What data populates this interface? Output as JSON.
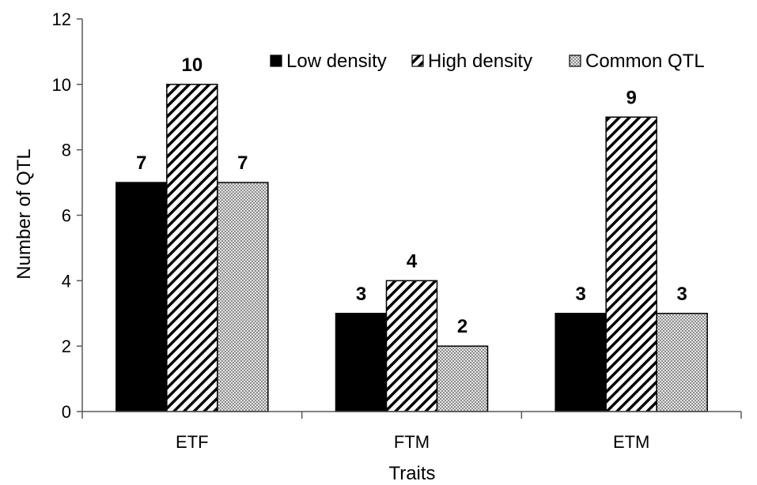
{
  "chart_data": {
    "type": "bar",
    "categories": [
      "ETF",
      "FTM",
      "ETM"
    ],
    "series": [
      {
        "name": "Low density",
        "values": [
          7,
          3,
          3
        ],
        "pattern": "solid",
        "color": "#000000"
      },
      {
        "name": "High density",
        "values": [
          10,
          4,
          9
        ],
        "pattern": "diagonal-hatch",
        "color": "#000000"
      },
      {
        "name": "Common QTL",
        "values": [
          7,
          2,
          3
        ],
        "pattern": "checker",
        "color": "#b0b0b0"
      }
    ],
    "data_labels": [
      [
        "7",
        "3",
        "3"
      ],
      [
        "10",
        "4",
        "9"
      ],
      [
        "7",
        "2",
        "3"
      ]
    ],
    "y_ticks": [
      "0",
      "2",
      "4",
      "6",
      "8",
      "10",
      "12"
    ],
    "title": "",
    "xlabel": "Traits",
    "ylabel": "Number of QTL",
    "ylim": [
      0,
      12
    ],
    "grid": false,
    "legend_position": "top-right"
  }
}
